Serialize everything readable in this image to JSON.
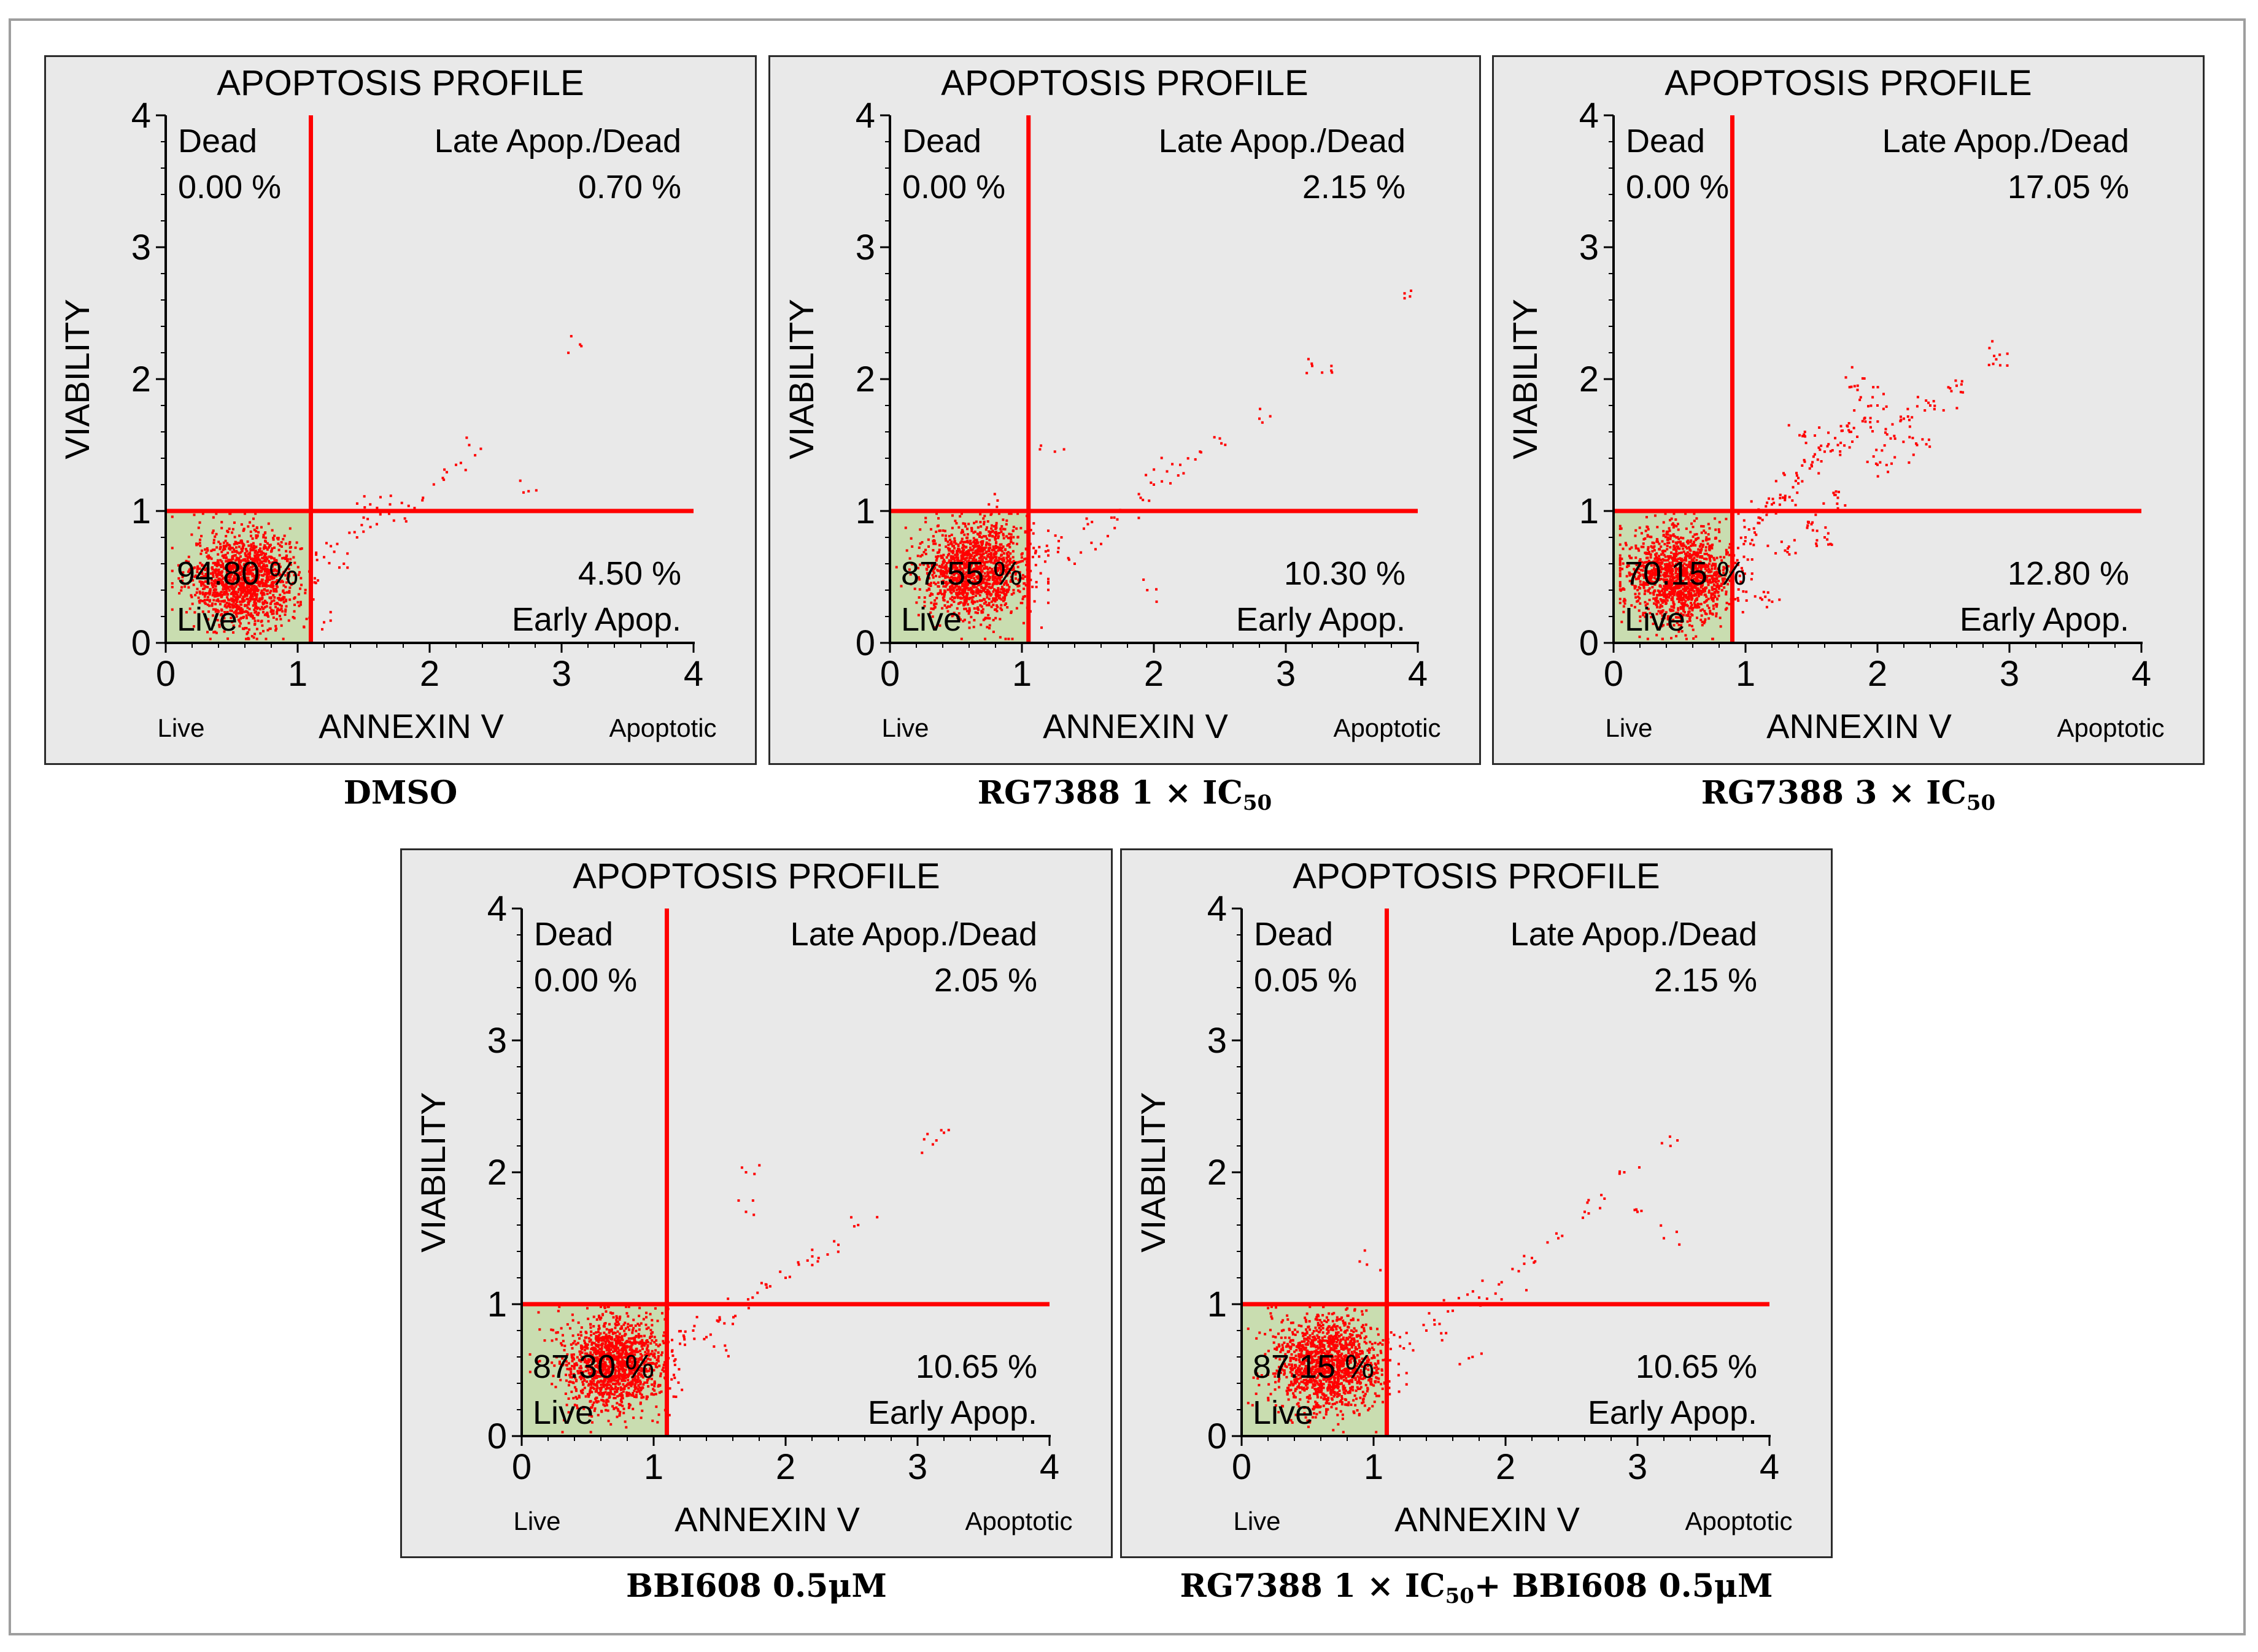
{
  "colors": {
    "quadrant_line": "#ff0000",
    "points": "#ff0000",
    "live_gate": "#c9ddb0",
    "panel_bg": "#e9e9e9",
    "axis": "#000000"
  },
  "chart_data": [
    {
      "type": "scatter",
      "title": "APOPTOSIS PROFILE",
      "xlabel": "ANNEXIN V",
      "ylabel": "VIABILITY",
      "x_left_label": "Live",
      "x_right_label": "Apoptotic",
      "xlim": [
        0,
        4
      ],
      "ylim": [
        0,
        4
      ],
      "xticks": [
        "0",
        "1",
        "2",
        "3",
        "4"
      ],
      "yticks": [
        "0",
        "1",
        "2",
        "3",
        "4"
      ],
      "gate": {
        "x": 1.1,
        "y": 1.0
      },
      "quadrants": {
        "dead": {
          "label": "Dead",
          "value": "0.00 %"
        },
        "late": {
          "label": "Late Apop./Dead",
          "value": "0.70 %"
        },
        "live": {
          "label": "Live",
          "value": "94.80 %"
        },
        "early": {
          "label": "Early Apop.",
          "value": "4.50 %"
        }
      },
      "cluster": {
        "cx": 0.6,
        "cy": 0.48
      },
      "tail_points": [
        [
          1.2,
          0.65
        ],
        [
          1.3,
          0.75
        ],
        [
          1.35,
          0.6
        ],
        [
          1.45,
          0.8
        ],
        [
          1.5,
          0.95
        ],
        [
          1.55,
          1.05
        ],
        [
          1.6,
          0.9
        ],
        [
          1.7,
          1.05
        ],
        [
          1.8,
          1.0
        ],
        [
          1.95,
          1.1
        ],
        [
          2.1,
          1.25
        ],
        [
          2.2,
          1.35
        ],
        [
          2.3,
          1.5
        ],
        [
          2.75,
          1.15
        ],
        [
          3.15,
          2.25
        ]
      ],
      "caption": {
        "main": "DMSO",
        "sub": "",
        "after": ""
      }
    },
    {
      "type": "scatter",
      "title": "APOPTOSIS PROFILE",
      "xlabel": "ANNEXIN V",
      "ylabel": "VIABILITY",
      "x_left_label": "Live",
      "x_right_label": "Apoptotic",
      "xlim": [
        0,
        4
      ],
      "ylim": [
        0,
        4
      ],
      "xticks": [
        "0",
        "1",
        "2",
        "3",
        "4"
      ],
      "yticks": [
        "0",
        "1",
        "2",
        "3",
        "4"
      ],
      "gate": {
        "x": 1.05,
        "y": 1.0
      },
      "quadrants": {
        "dead": {
          "label": "Dead",
          "value": "0.00 %"
        },
        "late": {
          "label": "Late Apop./Dead",
          "value": "2.15 %"
        },
        "live": {
          "label": "Live",
          "value": "87.55 %"
        },
        "early": {
          "label": "Early Apop.",
          "value": "10.30 %"
        }
      },
      "cluster": {
        "cx": 0.65,
        "cy": 0.55
      },
      "tail_points": [
        [
          1.2,
          0.7
        ],
        [
          1.3,
          0.8
        ],
        [
          1.4,
          0.6
        ],
        [
          1.5,
          0.9
        ],
        [
          1.6,
          0.75
        ],
        [
          1.7,
          0.95
        ],
        [
          1.8,
          1.0
        ],
        [
          1.9,
          1.1
        ],
        [
          2.0,
          1.2
        ],
        [
          2.1,
          1.3
        ],
        [
          2.2,
          1.35
        ],
        [
          2.35,
          1.45
        ],
        [
          2.5,
          1.55
        ],
        [
          2.8,
          1.7
        ],
        [
          3.2,
          2.1
        ],
        [
          3.35,
          2.05
        ],
        [
          3.9,
          2.65
        ],
        [
          1.25,
          1.45
        ],
        [
          0.75,
          1.05
        ],
        [
          1.95,
          0.4
        ]
      ],
      "caption": {
        "main": "RG7388 1 × IC",
        "sub": "50",
        "after": ""
      }
    },
    {
      "type": "scatter",
      "title": "APOPTOSIS PROFILE",
      "xlabel": "ANNEXIN V",
      "ylabel": "VIABILITY",
      "x_left_label": "Live",
      "x_right_label": "Apoptotic",
      "xlim": [
        0,
        4
      ],
      "ylim": [
        0,
        4
      ],
      "xticks": [
        "0",
        "1",
        "2",
        "3",
        "4"
      ],
      "yticks": [
        "0",
        "1",
        "2",
        "3",
        "4"
      ],
      "gate": {
        "x": 0.9,
        "y": 1.0
      },
      "quadrants": {
        "dead": {
          "label": "Dead",
          "value": "0.00 %"
        },
        "late": {
          "label": "Late Apop./Dead",
          "value": "17.05 %"
        },
        "live": {
          "label": "Live",
          "value": "70.15 %"
        },
        "early": {
          "label": "Early Apop.",
          "value": "12.80 %"
        }
      },
      "cluster": {
        "cx": 0.5,
        "cy": 0.5
      },
      "tail_points": [
        [
          1.0,
          0.8
        ],
        [
          1.1,
          0.95
        ],
        [
          1.2,
          1.05
        ],
        [
          1.3,
          1.1
        ],
        [
          1.4,
          1.25
        ],
        [
          1.5,
          1.35
        ],
        [
          1.6,
          1.45
        ],
        [
          1.7,
          1.5
        ],
        [
          1.8,
          1.6
        ],
        [
          1.9,
          1.7
        ],
        [
          2.0,
          1.8
        ],
        [
          2.2,
          1.7
        ],
        [
          2.4,
          1.8
        ],
        [
          2.6,
          1.95
        ],
        [
          2.9,
          2.15
        ],
        [
          1.3,
          0.7
        ],
        [
          1.5,
          0.9
        ],
        [
          1.7,
          1.1
        ],
        [
          2.0,
          1.35
        ],
        [
          2.3,
          1.5
        ],
        [
          1.15,
          0.35
        ],
        [
          1.6,
          0.8
        ],
        [
          1.85,
          1.95
        ],
        [
          2.1,
          1.55
        ],
        [
          1.45,
          1.6
        ]
      ],
      "caption": {
        "main": "RG7388 3 × IC",
        "sub": "50",
        "after": ""
      }
    },
    {
      "type": "scatter",
      "title": "APOPTOSIS PROFILE",
      "xlabel": "ANNEXIN V",
      "ylabel": "VIABILITY",
      "x_left_label": "Live",
      "x_right_label": "Apoptotic",
      "xlim": [
        0,
        4
      ],
      "ylim": [
        0,
        4
      ],
      "xticks": [
        "0",
        "1",
        "2",
        "3",
        "4"
      ],
      "yticks": [
        "0",
        "1",
        "2",
        "3",
        "4"
      ],
      "gate": {
        "x": 1.1,
        "y": 1.0
      },
      "quadrants": {
        "dead": {
          "label": "Dead",
          "value": "0.00 %"
        },
        "late": {
          "label": "Late Apop./Dead",
          "value": "2.05 %"
        },
        "live": {
          "label": "Live",
          "value": "87.30 %"
        },
        "early": {
          "label": "Early Apop.",
          "value": "10.65 %"
        }
      },
      "cluster": {
        "cx": 0.7,
        "cy": 0.55
      },
      "tail_points": [
        [
          1.2,
          0.7
        ],
        [
          1.3,
          0.8
        ],
        [
          1.4,
          0.75
        ],
        [
          1.5,
          0.9
        ],
        [
          1.6,
          0.85
        ],
        [
          1.65,
          1.0
        ],
        [
          1.75,
          1.05
        ],
        [
          1.85,
          1.15
        ],
        [
          2.0,
          1.2
        ],
        [
          2.1,
          1.3
        ],
        [
          2.25,
          1.35
        ],
        [
          2.4,
          1.45
        ],
        [
          2.55,
          1.6
        ],
        [
          3.05,
          2.25
        ],
        [
          3.2,
          2.3
        ],
        [
          1.7,
          2.0
        ],
        [
          1.7,
          1.7
        ],
        [
          1.55,
          0.65
        ]
      ],
      "caption": {
        "main": "BBI608 0.5μM",
        "sub": "",
        "after": ""
      }
    },
    {
      "type": "scatter",
      "title": "APOPTOSIS PROFILE",
      "xlabel": "ANNEXIN V",
      "ylabel": "VIABILITY",
      "x_left_label": "Live",
      "x_right_label": "Apoptotic",
      "xlim": [
        0,
        4
      ],
      "ylim": [
        0,
        4
      ],
      "xticks": [
        "0",
        "1",
        "2",
        "3",
        "4"
      ],
      "yticks": [
        "0",
        "1",
        "2",
        "3",
        "4"
      ],
      "gate": {
        "x": 1.1,
        "y": 1.0
      },
      "quadrants": {
        "dead": {
          "label": "Dead",
          "value": "0.05 %"
        },
        "late": {
          "label": "Late Apop./Dead",
          "value": "2.15 %"
        },
        "live": {
          "label": "Live",
          "value": "87.15 %"
        },
        "early": {
          "label": "Early Apop.",
          "value": "10.65 %"
        }
      },
      "cluster": {
        "cx": 0.65,
        "cy": 0.55
      },
      "tail_points": [
        [
          1.2,
          0.75
        ],
        [
          1.3,
          0.65
        ],
        [
          1.4,
          0.8
        ],
        [
          1.5,
          0.85
        ],
        [
          1.6,
          0.95
        ],
        [
          1.7,
          1.0
        ],
        [
          1.8,
          1.05
        ],
        [
          1.95,
          1.15
        ],
        [
          2.1,
          1.25
        ],
        [
          2.2,
          1.35
        ],
        [
          2.4,
          1.5
        ],
        [
          2.6,
          1.7
        ],
        [
          2.75,
          1.8
        ],
        [
          2.9,
          2.0
        ],
        [
          3.0,
          1.7
        ],
        [
          3.2,
          1.5
        ],
        [
          3.25,
          2.2
        ],
        [
          0.95,
          1.3
        ],
        [
          1.75,
          0.6
        ]
      ],
      "caption": {
        "main": "RG7388 1 × IC",
        "sub": "50",
        "after": "+ BBI608 0.5μM"
      }
    }
  ]
}
